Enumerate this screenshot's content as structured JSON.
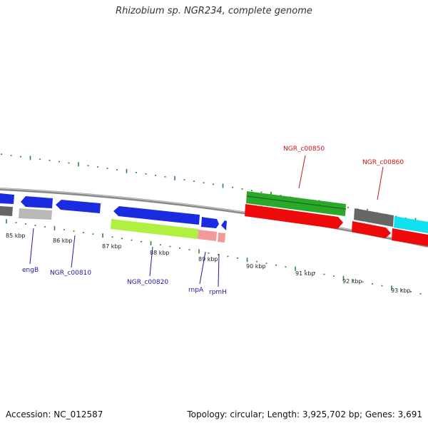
{
  "title": "Rhizobium sp. NGR234, complete genome",
  "footer": {
    "accession": "Accession: NC_012587",
    "summary": "Topology: circular; Length: 3,925,702 bp; Genes: 3,691"
  },
  "colors": {
    "forward_cds": "#1a2be0",
    "reverse_cds": "#ee0a0a",
    "green_cds": "#2aa82a",
    "rna": "#b0f040",
    "tick": "#2a8a2a",
    "backbone": "#8a8a8a",
    "label_blue": "#1a1aa0",
    "label_red": "#c81414"
  },
  "ticks": [
    "85 kbp",
    "86 kbp",
    "87 kbp",
    "88 kbp",
    "89 kbp",
    "90 kbp",
    "91 kbp",
    "92 kbp",
    "93 kbp"
  ],
  "gene_labels": [
    {
      "text": "engB",
      "color": "#1a1aa0"
    },
    {
      "text": "NGR_c00810",
      "color": "#1a1aa0"
    },
    {
      "text": "NGR_c00820",
      "color": "#1a1aa0"
    },
    {
      "text": "rnpA",
      "color": "#1a1aa0"
    },
    {
      "text": "rpmH",
      "color": "#1a1aa0"
    },
    {
      "text": "NGR_c00850",
      "color": "#c81414"
    },
    {
      "text": "NGR_c00860",
      "color": "#c81414"
    }
  ]
}
